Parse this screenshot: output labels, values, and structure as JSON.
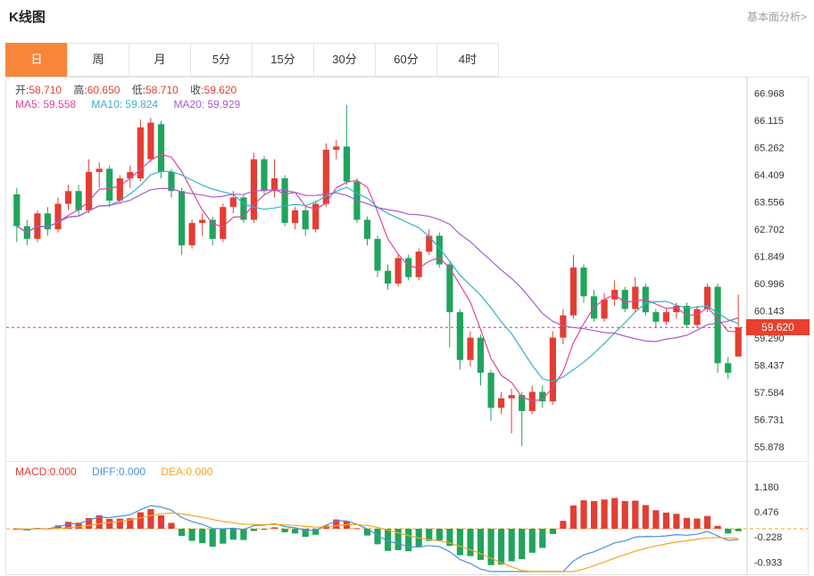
{
  "header": {
    "title": "K线图",
    "link": "基本面分析>"
  },
  "tabs": {
    "items": [
      "日",
      "周",
      "月",
      "5分",
      "15分",
      "30分",
      "60分",
      "4时"
    ],
    "active_index": 0
  },
  "legend": {
    "ohlc": {
      "o_label": "开:",
      "o": "58.710",
      "h_label": "高:",
      "h": "60.650",
      "l_label": "低:",
      "l": "58.710",
      "c_label": "收:",
      "c": "59.620"
    },
    "ma": {
      "ma5": "MA5: 59.558",
      "ma10": "MA10: 59.824",
      "ma20": "MA20: 59.929"
    }
  },
  "macd_legend": {
    "macd": "MACD:0.000",
    "diff": "DIFF:0.000",
    "dea": "DEA:0.000"
  },
  "price_tag": "59.620",
  "colors": {
    "up": "#e23e33",
    "down": "#21a45d",
    "tab_active": "#f7863b",
    "tag_bg": "#e8402d",
    "axis_text": "#333333",
    "border": "#e3e3e3"
  },
  "chart_data": {
    "type": "candlestick",
    "title": "K线图 (日K)",
    "period": "日",
    "current_price": 59.62,
    "up_color": "#e23e33",
    "down_color": "#21a45d",
    "price_domain": [
      55.6,
      67.35
    ],
    "price_axis": [
      66.968,
      66.115,
      65.262,
      64.409,
      63.556,
      62.702,
      61.849,
      60.996,
      60.143,
      59.29,
      58.437,
      57.584,
      56.731,
      55.878
    ],
    "macd_axis": [
      1.18,
      0.476,
      -0.228,
      -0.933
    ],
    "ma_colors": {
      "ma5": "#e0449a",
      "ma10": "#35b1c9",
      "ma20": "#a95ccd"
    },
    "macd_colors": {
      "diff": "#4a90d9",
      "dea": "#f5a623"
    },
    "indicators": {
      "ma5": 59.558,
      "ma10": 59.824,
      "ma20": 59.929,
      "macd": 0.0,
      "diff": 0.0,
      "dea": 0.0
    },
    "ohlc_today": {
      "open": 58.71,
      "high": 60.65,
      "low": 58.71,
      "close": 59.62
    },
    "candles": [
      [
        63.8,
        64.0,
        62.3,
        62.8
      ],
      [
        62.8,
        63.0,
        62.2,
        62.4
      ],
      [
        62.4,
        63.3,
        62.3,
        63.2
      ],
      [
        63.2,
        63.4,
        62.5,
        62.7
      ],
      [
        62.7,
        63.7,
        62.6,
        63.5
      ],
      [
        63.5,
        64.1,
        63.3,
        63.9
      ],
      [
        63.9,
        64.1,
        63.1,
        63.3
      ],
      [
        63.3,
        64.9,
        63.2,
        64.5
      ],
      [
        64.5,
        64.8,
        64.0,
        64.6
      ],
      [
        64.6,
        64.7,
        63.4,
        63.6
      ],
      [
        63.6,
        64.4,
        63.5,
        64.3
      ],
      [
        64.3,
        64.7,
        64.0,
        64.5
      ],
      [
        64.3,
        66.15,
        64.2,
        65.9
      ],
      [
        64.9,
        66.2,
        64.8,
        66.05
      ],
      [
        66.0,
        66.1,
        64.3,
        64.5
      ],
      [
        64.5,
        64.6,
        63.7,
        63.9
      ],
      [
        63.9,
        64.0,
        61.9,
        62.2
      ],
      [
        62.2,
        63.0,
        62.1,
        62.9
      ],
      [
        62.9,
        63.2,
        62.5,
        63.0
      ],
      [
        63.0,
        63.1,
        62.2,
        62.4
      ],
      [
        62.4,
        63.5,
        62.3,
        63.4
      ],
      [
        63.4,
        63.9,
        63.2,
        63.7
      ],
      [
        63.7,
        63.8,
        62.9,
        63.0
      ],
      [
        63.0,
        65.1,
        62.9,
        64.9
      ],
      [
        64.9,
        65.0,
        63.8,
        63.9
      ],
      [
        63.9,
        64.9,
        63.7,
        64.3
      ],
      [
        64.3,
        64.4,
        62.8,
        62.9
      ],
      [
        62.9,
        63.4,
        62.7,
        63.3
      ],
      [
        63.3,
        63.4,
        62.5,
        62.7
      ],
      [
        62.7,
        63.6,
        62.6,
        63.5
      ],
      [
        63.5,
        65.4,
        63.4,
        65.2
      ],
      [
        65.2,
        65.5,
        64.9,
        65.3
      ],
      [
        65.3,
        66.6,
        64.1,
        64.2
      ],
      [
        64.2,
        64.3,
        62.9,
        63.0
      ],
      [
        63.0,
        63.1,
        62.2,
        62.4
      ],
      [
        62.4,
        62.5,
        61.2,
        61.4
      ],
      [
        61.4,
        61.6,
        60.8,
        61.0
      ],
      [
        61.0,
        61.9,
        60.9,
        61.8
      ],
      [
        61.8,
        61.9,
        61.1,
        61.2
      ],
      [
        61.2,
        62.1,
        61.1,
        62.0
      ],
      [
        62.0,
        62.7,
        61.9,
        62.5
      ],
      [
        62.5,
        62.6,
        61.5,
        61.6
      ],
      [
        61.6,
        61.7,
        59.0,
        60.1
      ],
      [
        60.1,
        60.2,
        58.3,
        58.6
      ],
      [
        58.6,
        59.5,
        58.4,
        59.3
      ],
      [
        59.3,
        59.4,
        57.8,
        58.2
      ],
      [
        58.2,
        58.3,
        56.7,
        57.1
      ],
      [
        57.1,
        57.6,
        56.9,
        57.4
      ],
      [
        57.4,
        57.7,
        56.3,
        57.5
      ],
      [
        57.5,
        57.6,
        55.9,
        57.0
      ],
      [
        57.0,
        57.8,
        56.9,
        57.6
      ],
      [
        57.6,
        57.8,
        57.1,
        57.3
      ],
      [
        57.3,
        59.5,
        57.2,
        59.3
      ],
      [
        59.3,
        60.2,
        59.1,
        60.0
      ],
      [
        60.0,
        61.9,
        59.9,
        61.5
      ],
      [
        61.5,
        61.6,
        60.4,
        60.6
      ],
      [
        60.6,
        60.8,
        59.8,
        59.9
      ],
      [
        59.9,
        60.7,
        59.8,
        60.5
      ],
      [
        60.5,
        61.1,
        60.3,
        60.8
      ],
      [
        60.8,
        60.9,
        60.1,
        60.2
      ],
      [
        60.2,
        61.2,
        60.1,
        60.9
      ],
      [
        60.9,
        61.0,
        60.0,
        60.1
      ],
      [
        60.1,
        60.2,
        59.6,
        59.8
      ],
      [
        59.8,
        60.2,
        59.7,
        60.1
      ],
      [
        60.1,
        60.4,
        59.9,
        60.3
      ],
      [
        60.3,
        60.4,
        59.6,
        59.7
      ],
      [
        59.7,
        60.3,
        59.6,
        60.2
      ],
      [
        60.2,
        61.0,
        60.1,
        60.9
      ],
      [
        60.9,
        61.0,
        58.2,
        58.5
      ],
      [
        58.5,
        58.7,
        58.0,
        58.2
      ],
      [
        58.71,
        60.65,
        58.71,
        59.62
      ]
    ]
  }
}
